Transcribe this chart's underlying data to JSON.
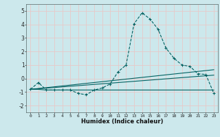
{
  "title": "",
  "xlabel": "Humidex (Indice chaleur)",
  "bg_color": "#cce8ec",
  "grid_color": "#e8c8c8",
  "line_color": "#006060",
  "xlim": [
    -0.5,
    23.5
  ],
  "ylim": [
    -2.5,
    5.5
  ],
  "xticks": [
    0,
    1,
    2,
    3,
    4,
    5,
    6,
    7,
    8,
    9,
    10,
    11,
    12,
    13,
    14,
    15,
    16,
    17,
    18,
    19,
    20,
    21,
    22,
    23
  ],
  "yticks": [
    -2,
    -1,
    0,
    1,
    2,
    3,
    4,
    5
  ],
  "line1_x": [
    0,
    1,
    2,
    3,
    4,
    5,
    6,
    7,
    8,
    9,
    10,
    11,
    12,
    13,
    14,
    15,
    16,
    17,
    18,
    19,
    20,
    21,
    22,
    23
  ],
  "line1_y": [
    -0.8,
    -0.3,
    -0.85,
    -0.85,
    -0.85,
    -0.85,
    -1.1,
    -1.2,
    -0.85,
    -0.7,
    -0.4,
    0.5,
    1.0,
    4.05,
    4.85,
    4.4,
    3.65,
    2.25,
    1.5,
    1.0,
    0.9,
    0.35,
    0.3,
    -1.1
  ],
  "line2_x": [
    0,
    1,
    2,
    3,
    4,
    5,
    6,
    7,
    8,
    9,
    10,
    11,
    12,
    13,
    14,
    15,
    16,
    17,
    18,
    19,
    20,
    21,
    22,
    23
  ],
  "line2_y": [
    -0.8,
    -0.8,
    -0.85,
    -0.85,
    -0.85,
    -0.85,
    -0.85,
    -0.85,
    -0.85,
    -0.85,
    -0.85,
    -0.85,
    -0.85,
    -0.85,
    -0.85,
    -0.85,
    -0.85,
    -0.85,
    -0.85,
    -0.85,
    -0.85,
    -0.85,
    -0.85,
    -0.85
  ],
  "line3_x": [
    0,
    23
  ],
  "line3_y": [
    -0.8,
    0.65
  ],
  "line4_x": [
    0,
    23
  ],
  "line4_y": [
    -0.8,
    0.25
  ]
}
